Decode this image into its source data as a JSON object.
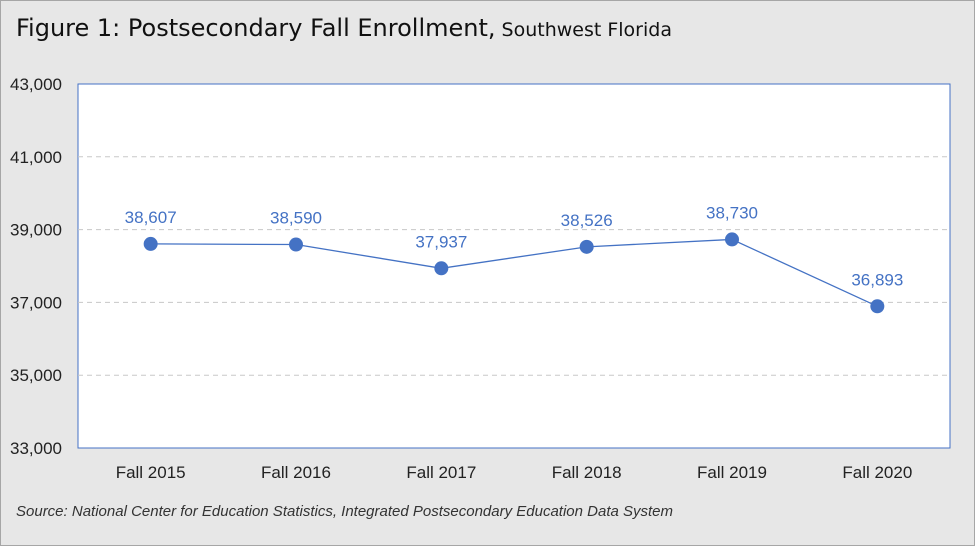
{
  "title": "Figure 1:  Postsecondary Fall Enrollment,",
  "subtitle": "Southwest Florida",
  "source": "Source: National Center for Education Statistics, Integrated Postsecondary Education Data System",
  "colors": {
    "series": "#4472c4",
    "label": "#4472c4",
    "grid": "#c8c8c8",
    "axis_text": "#222222",
    "plot_bg": "#ffffff",
    "plot_border": "#4472c4"
  },
  "chart_data": {
    "type": "line",
    "categories": [
      "Fall 2015",
      "Fall 2016",
      "Fall 2017",
      "Fall 2018",
      "Fall 2019",
      "Fall 2020"
    ],
    "series": [
      {
        "values": [
          38607,
          38590,
          37937,
          38526,
          38730,
          36893
        ]
      }
    ],
    "data_labels": [
      "38,607",
      "38,590",
      "37,937",
      "38,526",
      "38,730",
      "36,893"
    ],
    "ylim": [
      33000,
      43000
    ],
    "yticks": [
      33000,
      35000,
      37000,
      39000,
      41000,
      43000
    ],
    "ytick_labels": [
      "33,000",
      "35,000",
      "37,000",
      "39,000",
      "41,000",
      "43,000"
    ],
    "grid": "horizontal dashed",
    "legend": "none"
  }
}
